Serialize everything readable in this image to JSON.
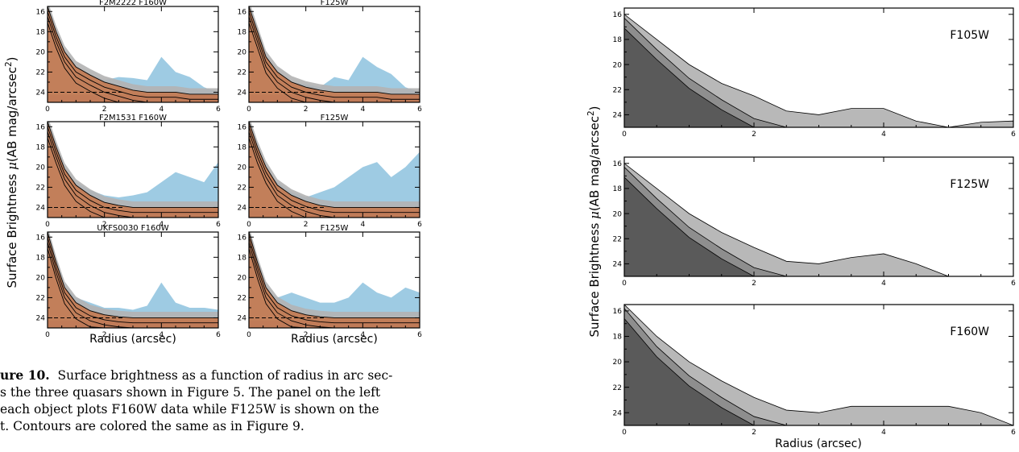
{
  "left_figure": {
    "ylabel_parts": [
      "Surface Brightness ",
      "μ",
      "(AB mag/arcsec",
      "2",
      ")"
    ],
    "xlabel": "Radius (arcsec)",
    "panels": [
      {
        "title": "F2M2222 F160W"
      },
      {
        "title": "F125W"
      },
      {
        "title": "F2M1531 F160W"
      },
      {
        "title": "F125W"
      },
      {
        "title": "UKFS0030 F160W"
      },
      {
        "title": "F125W"
      }
    ],
    "colors": {
      "blue": "#9ecbe3",
      "orange": "#f7b13a",
      "light_orange": "#fbc87a",
      "dark_orange": "#c9561c",
      "gray": "#b3b3b3",
      "dark_gray": "#8c8c8c"
    }
  },
  "caption": {
    "label": "ure 10.",
    "lines": [
      "Surface brightness as a function of radius in arc sec-",
      "s the three quasars shown in Figure 5.  The panel on the left",
      "each object plots F160W data while F125W is shown on the",
      "t.  Contours are colored the same as in Figure 9."
    ]
  },
  "right_figure": {
    "ylabel_parts": [
      "Surface Brightness ",
      "μ",
      "(AB mag/arcsec",
      "2",
      ")"
    ],
    "xlabel": "Radius (arcsec)",
    "panels": [
      {
        "label": "F105W"
      },
      {
        "label": "F125W"
      },
      {
        "label": "F160W"
      }
    ],
    "colors": {
      "fill": "#b8b8b8",
      "mid": "#8e8e8e",
      "dark": "#5a5a5a"
    }
  },
  "chart_data": [
    {
      "type": "area",
      "title": "F2M2222 F160W",
      "xlabel": "Radius (arcsec)",
      "ylabel": "Surface Brightness μ(AB mag/arcsec²)",
      "xlim": [
        0,
        6
      ],
      "ylim": [
        25,
        15.5
      ],
      "xticks": [
        0,
        2,
        4,
        6
      ],
      "yticks": [
        16,
        18,
        20,
        22,
        24
      ],
      "reference_line_y": 24,
      "series": [
        {
          "x": [
            0,
            0.3,
            0.6,
            1,
            1.5,
            2,
            2.5,
            3,
            3.5,
            4,
            4.5,
            5,
            5.5,
            6
          ],
          "values": [
            16,
            19.5,
            21,
            22,
            22.3,
            22.8,
            22.5,
            22.6,
            22.8,
            20.5,
            22,
            22.5,
            23.5,
            24
          ]
        },
        {
          "x": [
            0,
            0.3,
            0.6,
            1,
            1.5,
            2,
            2.5,
            3,
            3.5,
            4,
            4.5,
            5,
            5.5,
            6
          ],
          "values": [
            15.5,
            18,
            20,
            21.5,
            22.3,
            23,
            23.4,
            23.8,
            24,
            24,
            24,
            24.2,
            24.2,
            24.2
          ]
        }
      ]
    },
    {
      "type": "area",
      "title": "F125W",
      "xlabel": "Radius (arcsec)",
      "ylabel": "Surface Brightness μ(AB mag/arcsec²)",
      "xlim": [
        0,
        6
      ],
      "ylim": [
        25,
        15.5
      ],
      "xticks": [
        0,
        2,
        4,
        6
      ],
      "yticks": [
        16,
        18,
        20,
        22,
        24
      ],
      "reference_line_y": 24,
      "series": [
        {
          "x": [
            0,
            0.3,
            0.6,
            1,
            1.5,
            2,
            2.5,
            3,
            3.5,
            4,
            4.5,
            5,
            5.5,
            6
          ],
          "values": [
            16,
            19.5,
            21.5,
            22.5,
            23,
            23.2,
            23.5,
            22.5,
            22.8,
            20.5,
            21.5,
            22.2,
            23.5,
            24
          ]
        },
        {
          "x": [
            0,
            0.3,
            0.6,
            1,
            1.5,
            2,
            2.5,
            3,
            3.5,
            4,
            4.5,
            5,
            5.5,
            6
          ],
          "values": [
            15.5,
            18,
            20.5,
            22,
            23,
            23.5,
            23.8,
            24,
            24,
            24,
            24,
            24.2,
            24.2,
            24.2
          ]
        }
      ]
    },
    {
      "type": "area",
      "title": "F2M1531 F160W",
      "xlabel": "Radius (arcsec)",
      "ylabel": "Surface Brightness μ(AB mag/arcsec²)",
      "xlim": [
        0,
        6
      ],
      "ylim": [
        25,
        15.5
      ],
      "xticks": [
        0,
        2,
        4,
        6
      ],
      "yticks": [
        16,
        18,
        20,
        22,
        24
      ],
      "reference_line_y": 24,
      "series": [
        {
          "x": [
            0,
            0.3,
            0.6,
            1,
            1.5,
            2,
            2.5,
            3,
            3.5,
            4,
            4.5,
            5,
            5.5,
            6
          ],
          "values": [
            16,
            19,
            20.5,
            21.5,
            22.3,
            22.8,
            23,
            22.8,
            22.5,
            21.5,
            20.5,
            21,
            21.5,
            19.5
          ]
        },
        {
          "x": [
            0,
            0.3,
            0.6,
            1,
            1.5,
            2,
            2.5,
            3,
            3.5,
            4,
            4.5,
            5,
            5.5,
            6
          ],
          "values": [
            15.5,
            18,
            20.2,
            21.8,
            22.8,
            23.5,
            23.8,
            24,
            24,
            24,
            24,
            24,
            24,
            24
          ]
        }
      ]
    },
    {
      "type": "area",
      "title": "F125W",
      "xlabel": "Radius (arcsec)",
      "ylabel": "Surface Brightness μ(AB mag/arcsec²)",
      "xlim": [
        0,
        6
      ],
      "ylim": [
        25,
        15.5
      ],
      "xticks": [
        0,
        2,
        4,
        6
      ],
      "yticks": [
        16,
        18,
        20,
        22,
        24
      ],
      "reference_line_y": 24,
      "series": [
        {
          "x": [
            0,
            0.3,
            0.6,
            1,
            1.5,
            2,
            2.5,
            3,
            3.5,
            4,
            4.5,
            5,
            5.5,
            6
          ],
          "values": [
            16,
            19,
            20.5,
            21.5,
            22.5,
            23,
            22.5,
            22,
            21,
            20,
            19.5,
            21,
            20,
            18.5
          ]
        },
        {
          "x": [
            0,
            0.3,
            0.6,
            1,
            1.5,
            2,
            2.5,
            3,
            3.5,
            4,
            4.5,
            5,
            5.5,
            6
          ],
          "values": [
            15.5,
            18,
            20,
            21.8,
            22.8,
            23.4,
            23.8,
            24,
            24,
            24,
            24,
            24,
            24,
            24
          ]
        }
      ]
    },
    {
      "type": "area",
      "title": "UKFS0030 F160W",
      "xlabel": "Radius (arcsec)",
      "ylabel": "Surface Brightness μ(AB mag/arcsec²)",
      "xlim": [
        0,
        6
      ],
      "ylim": [
        25,
        15.5
      ],
      "xticks": [
        0,
        2,
        4,
        6
      ],
      "yticks": [
        16,
        18,
        20,
        22,
        24
      ],
      "reference_line_y": 24,
      "series": [
        {
          "x": [
            0,
            0.3,
            0.6,
            1,
            1.5,
            2,
            2.5,
            3,
            3.5,
            4,
            4.5,
            5,
            5.5,
            6
          ],
          "values": [
            16,
            19,
            21,
            22,
            22.5,
            23,
            23,
            23.2,
            22.8,
            20.5,
            22.5,
            23,
            23,
            23.2
          ]
        },
        {
          "x": [
            0,
            0.3,
            0.6,
            1,
            1.5,
            2,
            2.5,
            3,
            3.5,
            4,
            4.5,
            5,
            5.5,
            6
          ],
          "values": [
            15.5,
            18.5,
            21,
            22.5,
            23.3,
            23.7,
            23.9,
            24,
            24,
            24,
            24,
            24,
            24,
            24
          ]
        }
      ]
    },
    {
      "type": "area",
      "title": "F125W",
      "xlabel": "Radius (arcsec)",
      "ylabel": "Surface Brightness μ(AB mag/arcsec²)",
      "xlim": [
        0,
        6
      ],
      "ylim": [
        25,
        15.5
      ],
      "xticks": [
        0,
        2,
        4,
        6
      ],
      "yticks": [
        16,
        18,
        20,
        22,
        24
      ],
      "reference_line_y": 24,
      "series": [
        {
          "x": [
            0,
            0.3,
            0.6,
            1,
            1.5,
            2,
            2.5,
            3,
            3.5,
            4,
            4.5,
            5,
            5.5,
            6
          ],
          "values": [
            16,
            19.5,
            21.5,
            22,
            21.5,
            22,
            22.5,
            22.5,
            22,
            20.5,
            21.5,
            22,
            21,
            21.5
          ]
        },
        {
          "x": [
            0,
            0.3,
            0.6,
            1,
            1.5,
            2,
            2.5,
            3,
            3.5,
            4,
            4.5,
            5,
            5.5,
            6
          ],
          "values": [
            15.5,
            18.5,
            21,
            22.5,
            23.3,
            23.7,
            23.9,
            24,
            24,
            24,
            24,
            24,
            24,
            24
          ]
        }
      ]
    },
    {
      "type": "area",
      "title": "",
      "xlabel": "Radius (arcsec)",
      "ylabel": "Surface Brightness μ(AB mag/arcsec²)",
      "annotation": "F105W",
      "xlim": [
        0,
        6
      ],
      "ylim": [
        25,
        15.5
      ],
      "xticks": [
        0,
        2,
        4,
        6
      ],
      "yticks": [
        16,
        18,
        20,
        22,
        24
      ],
      "series": [
        {
          "x": [
            0,
            0.5,
            1,
            1.5,
            2,
            2.5,
            3,
            3.5,
            4,
            4.5,
            5,
            5.5,
            6
          ],
          "values": [
            16,
            18,
            20,
            21.5,
            22.5,
            23.7,
            24,
            23.5,
            23.5,
            24.5,
            25,
            24.6,
            24.5
          ]
        },
        {
          "x": [
            0,
            0.5,
            1,
            1.5,
            2,
            2.5,
            3,
            3.5,
            4,
            4.5,
            5,
            5.5,
            6
          ],
          "values": [
            16,
            18.5,
            20.8,
            22.5,
            24,
            25,
            25,
            25,
            25,
            25,
            25,
            25,
            25
          ]
        }
      ]
    },
    {
      "type": "area",
      "title": "",
      "xlabel": "Radius (arcsec)",
      "ylabel": "Surface Brightness μ(AB mag/arcsec²)",
      "annotation": "F125W",
      "xlim": [
        0,
        6
      ],
      "ylim": [
        25,
        15.5
      ],
      "xticks": [
        0,
        2,
        4,
        6
      ],
      "yticks": [
        16,
        18,
        20,
        22,
        24
      ],
      "series": [
        {
          "x": [
            0,
            0.5,
            1,
            1.5,
            2,
            2.5,
            3,
            3.5,
            4,
            4.5,
            5,
            5.5,
            6
          ],
          "values": [
            16,
            18,
            20,
            21.5,
            22.7,
            23.8,
            24,
            23.5,
            23.2,
            24,
            25,
            25,
            25
          ]
        },
        {
          "x": [
            0,
            0.5,
            1,
            1.5,
            2,
            2.5,
            3,
            3.5,
            4,
            4.5,
            5,
            5.5,
            6
          ],
          "values": [
            16,
            18.5,
            20.8,
            22.5,
            24,
            25,
            25,
            25,
            25,
            25,
            25,
            25,
            25
          ]
        }
      ]
    },
    {
      "type": "area",
      "title": "",
      "xlabel": "Radius (arcsec)",
      "ylabel": "Surface Brightness μ(AB mag/arcsec²)",
      "annotation": "F160W",
      "xlim": [
        0,
        6
      ],
      "ylim": [
        25,
        15.5
      ],
      "xticks": [
        0,
        2,
        4,
        6
      ],
      "yticks": [
        16,
        18,
        20,
        22,
        24
      ],
      "series": [
        {
          "x": [
            0,
            0.5,
            1,
            1.5,
            2,
            2.5,
            3,
            3.5,
            4,
            4.5,
            5,
            5.5,
            6
          ],
          "values": [
            15.5,
            18,
            20,
            21.5,
            22.8,
            23.8,
            24,
            23.5,
            23.5,
            23.5,
            23.5,
            24,
            25
          ]
        },
        {
          "x": [
            0,
            0.5,
            1,
            1.5,
            2,
            2.5,
            3,
            3.5,
            4,
            4.5,
            5,
            5.5,
            6
          ],
          "values": [
            15.5,
            18.5,
            20.8,
            22.5,
            24,
            25,
            25,
            25,
            25,
            25,
            25,
            25,
            25
          ]
        }
      ]
    }
  ]
}
